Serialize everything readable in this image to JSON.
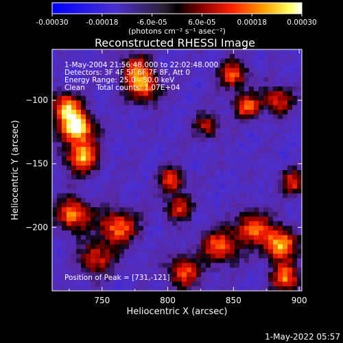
{
  "chart_data": {
    "type": "heatmap",
    "title": "Reconstructed RHESSI Image",
    "xlabel": "Heliocentric X (arcsec)",
    "ylabel": "Heliocentric Y (arcsec)",
    "xlim": [
      712,
      902
    ],
    "ylim": [
      -250,
      -60
    ],
    "x_ticks": [
      750,
      800,
      850,
      900
    ],
    "x_tick_labels": [
      "750",
      "800",
      "850",
      "900"
    ],
    "y_ticks": [
      -100,
      -150,
      -200
    ],
    "y_tick_labels": [
      "−100",
      "−150",
      "−200"
    ],
    "colorbar": {
      "range": [
        -0.0003,
        0.0003
      ],
      "tick_values": [
        -0.0003,
        -0.00018,
        -6e-05,
        6e-05,
        0.00018,
        0.0003
      ],
      "tick_labels": [
        "-0.00030",
        "-0.00018",
        "-6.0e-05",
        "6.0e-05",
        "0.00018",
        "0.00030"
      ],
      "unit_label": "(photons cm⁻² s⁻¹ asec⁻²)",
      "colormap": "blue-purple-red-yellow-white"
    },
    "annotations": {
      "line1": "1-May-2004 21:56:48.000 to 22:02:48.000",
      "line2": "Detectors: 3F 4F 5F 6F 7F 8F, Att 0",
      "line3": "Energy Range: 25.0 - 50.0 keV",
      "line4": "Clean     Total counts: 1.07E+04"
    },
    "peak_label": "Position of Peak = [731,-121]",
    "peak_position": [
      731,
      -121
    ],
    "bright_regions": [
      {
        "x": 731,
        "y": -121,
        "intensity": 0.0003,
        "sigma": 9
      },
      {
        "x": 735,
        "y": -145,
        "intensity": 0.00022,
        "sigma": 9
      },
      {
        "x": 722,
        "y": -105,
        "intensity": 0.00018,
        "sigma": 8
      },
      {
        "x": 728,
        "y": -190,
        "intensity": 0.0002,
        "sigma": 9
      },
      {
        "x": 762,
        "y": -200,
        "intensity": 0.00018,
        "sigma": 10
      },
      {
        "x": 745,
        "y": -225,
        "intensity": 0.00012,
        "sigma": 9
      },
      {
        "x": 782,
        "y": -90,
        "intensity": 0.00016,
        "sigma": 9
      },
      {
        "x": 775,
        "y": -75,
        "intensity": 0.00012,
        "sigma": 8
      },
      {
        "x": 803,
        "y": -163,
        "intensity": 0.00014,
        "sigma": 7
      },
      {
        "x": 808,
        "y": -185,
        "intensity": 0.00012,
        "sigma": 7
      },
      {
        "x": 812,
        "y": -235,
        "intensity": 0.00014,
        "sigma": 9
      },
      {
        "x": 840,
        "y": -215,
        "intensity": 0.00016,
        "sigma": 10
      },
      {
        "x": 865,
        "y": -200,
        "intensity": 0.00015,
        "sigma": 9
      },
      {
        "x": 885,
        "y": -213,
        "intensity": 0.00024,
        "sigma": 9
      },
      {
        "x": 890,
        "y": -240,
        "intensity": 0.00018,
        "sigma": 8
      },
      {
        "x": 850,
        "y": -80,
        "intensity": 0.00014,
        "sigma": 8
      },
      {
        "x": 860,
        "y": -105,
        "intensity": 0.00016,
        "sigma": 7
      },
      {
        "x": 884,
        "y": -100,
        "intensity": 0.00012,
        "sigma": 8
      },
      {
        "x": 830,
        "y": -120,
        "intensity": 8e-05,
        "sigma": 7
      },
      {
        "x": 895,
        "y": -165,
        "intensity": 0.00012,
        "sigma": 7
      }
    ],
    "background": -0.00012,
    "grid": false
  },
  "footer_timestamp": "1-May-2022 05:57"
}
